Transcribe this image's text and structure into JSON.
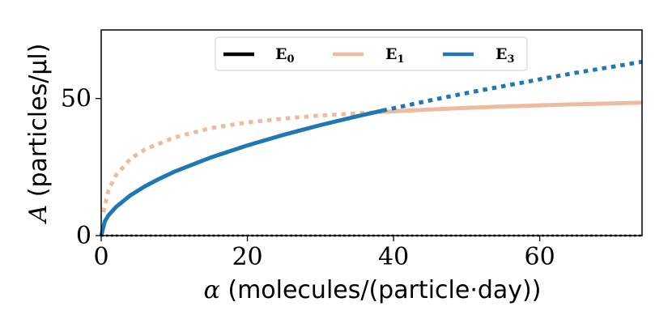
{
  "chart_data": {
    "type": "line",
    "title": "",
    "xlabel": {
      "symbol": "α",
      "text": "(molecules/(particle·day))"
    },
    "ylabel": {
      "symbol": "A",
      "text": "(particles/μl)"
    },
    "xlim": [
      0,
      74
    ],
    "ylim": [
      0,
      75
    ],
    "xticks": [
      0,
      20,
      40,
      60
    ],
    "xtick_labels": [
      "0",
      "20",
      "40",
      "60"
    ],
    "yticks": [
      0,
      50
    ],
    "ytick_labels": [
      "0",
      "50"
    ],
    "grid": false,
    "legend_position": "top-center",
    "colors": {
      "E0": "#000000",
      "E1": "#efbba0",
      "E3": "#1f77b4"
    },
    "series": [
      {
        "name": "E0",
        "label": "E",
        "sub": "0",
        "color": "#000000",
        "x": [
          0,
          74
        ],
        "y": [
          0,
          0
        ],
        "style": "dotted"
      },
      {
        "name": "E1",
        "label": "E",
        "sub": "1",
        "color": "#efbba0",
        "segments": [
          {
            "style": "dotted",
            "x": [
              0.3,
              1,
              2,
              4,
              6,
              10,
              15,
              20,
              25,
              30,
              35,
              38.5
            ],
            "y": [
              8.5,
              16.5,
              22,
              28,
              31.5,
              35.8,
              39.2,
              41.3,
              42.7,
              43.8,
              44.6,
              45.1
            ]
          },
          {
            "style": "solid",
            "x": [
              38.5,
              45,
              50,
              55,
              60,
              65,
              70,
              74
            ],
            "y": [
              45.1,
              46.0,
              46.6,
              47.1,
              47.5,
              47.9,
              48.2,
              48.5
            ]
          }
        ]
      },
      {
        "name": "E3",
        "label": "E",
        "sub": "3",
        "color": "#1f77b4",
        "segments": [
          {
            "style": "solid",
            "x": [
              0,
              0.5,
              1,
              2,
              4,
              6,
              8,
              10,
              15,
              20,
              25,
              30,
              35,
              38.5
            ],
            "y": [
              0,
              5.2,
              7.4,
              10.4,
              14.7,
              18.0,
              20.8,
              23.3,
              28.5,
              32.9,
              36.8,
              40.3,
              43.5,
              45.6
            ]
          },
          {
            "style": "dotted",
            "x": [
              38.5,
              45,
              50,
              55,
              60,
              65,
              70,
              74
            ],
            "y": [
              45.6,
              49.3,
              52.0,
              54.5,
              57.0,
              59.4,
              61.6,
              63.4
            ]
          }
        ]
      }
    ]
  }
}
